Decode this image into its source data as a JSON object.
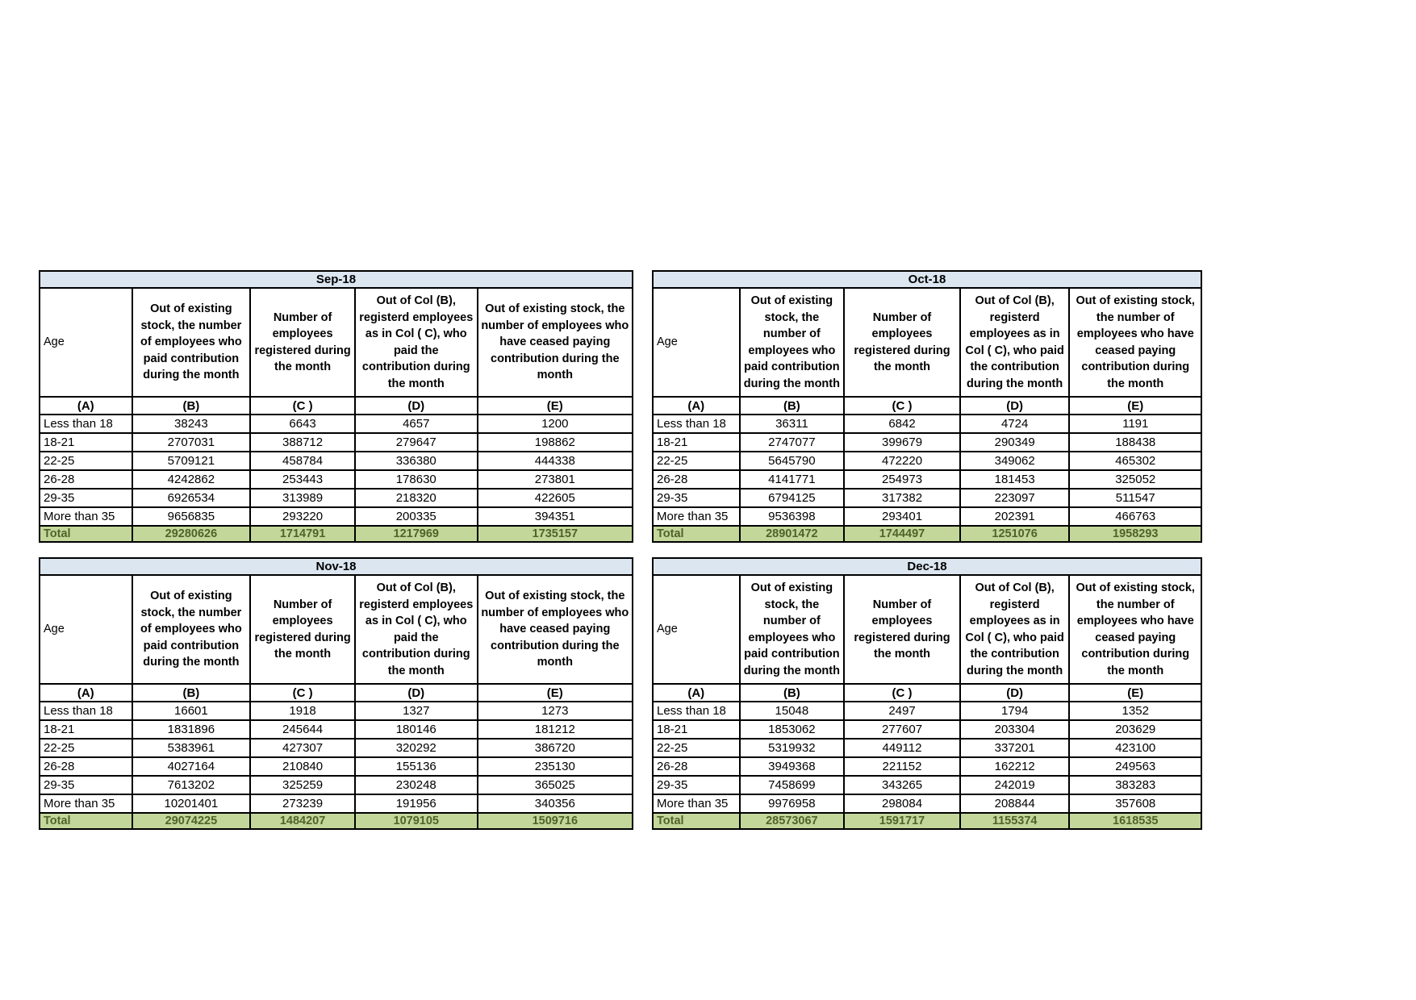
{
  "colors": {
    "title_bg": "#dce6f1",
    "total_bg": "#c4d79b",
    "total_text": "#4f6228",
    "border": "#000000",
    "page_bg": "#ffffff"
  },
  "shared": {
    "age_header": "Age",
    "code_row": [
      "(A)",
      "(B)",
      "(C )",
      "(D)",
      "(E)"
    ],
    "column_headers": [
      "Out of existing stock, the number of employees who paid contribution during the month",
      "Number of employees registered during the month",
      "Out of Col (B), registerd employees as in Col ( C), who paid the contribution during the month",
      "Out of existing stock, the number of  employees  who have ceased paying contribution during the month"
    ]
  },
  "chart_data": {
    "type": "table",
    "note": "Four monthly tables of employee contribution statistics by age group"
  },
  "tables": [
    {
      "title": "Sep-18",
      "rows": [
        [
          "Less than 18",
          "38243",
          "6643",
          "4657",
          "1200"
        ],
        [
          "18-21",
          "2707031",
          "388712",
          "279647",
          "198862"
        ],
        [
          "22-25",
          "5709121",
          "458784",
          "336380",
          "444338"
        ],
        [
          "26-28",
          "4242862",
          "253443",
          "178630",
          "273801"
        ],
        [
          "29-35",
          "6926534",
          "313989",
          "218320",
          "422605"
        ],
        [
          "More than 35",
          "9656835",
          "293220",
          "200335",
          "394351"
        ]
      ],
      "total": [
        "Total",
        "29280626",
        "1714791",
        "1217969",
        "1735157"
      ]
    },
    {
      "title": "Oct-18",
      "rows": [
        [
          "Less than 18",
          "36311",
          "6842",
          "4724",
          "1191"
        ],
        [
          "18-21",
          "2747077",
          "399679",
          "290349",
          "188438"
        ],
        [
          "22-25",
          "5645790",
          "472220",
          "349062",
          "465302"
        ],
        [
          "26-28",
          "4141771",
          "254973",
          "181453",
          "325052"
        ],
        [
          "29-35",
          "6794125",
          "317382",
          "223097",
          "511547"
        ],
        [
          "More than 35",
          "9536398",
          "293401",
          "202391",
          "466763"
        ]
      ],
      "total": [
        "Total",
        "28901472",
        "1744497",
        "1251076",
        "1958293"
      ]
    },
    {
      "title": "Nov-18",
      "rows": [
        [
          "Less than 18",
          "16601",
          "1918",
          "1327",
          "1273"
        ],
        [
          "18-21",
          "1831896",
          "245644",
          "180146",
          "181212"
        ],
        [
          "22-25",
          "5383961",
          "427307",
          "320292",
          "386720"
        ],
        [
          "26-28",
          "4027164",
          "210840",
          "155136",
          "235130"
        ],
        [
          "29-35",
          "7613202",
          "325259",
          "230248",
          "365025"
        ],
        [
          "More than 35",
          "10201401",
          "273239",
          "191956",
          "340356"
        ]
      ],
      "total": [
        "Total",
        "29074225",
        "1484207",
        "1079105",
        "1509716"
      ]
    },
    {
      "title": "Dec-18",
      "rows": [
        [
          "Less than 18",
          "15048",
          "2497",
          "1794",
          "1352"
        ],
        [
          "18-21",
          "1853062",
          "277607",
          "203304",
          "203629"
        ],
        [
          "22-25",
          "5319932",
          "449112",
          "337201",
          "423100"
        ],
        [
          "26-28",
          "3949368",
          "221152",
          "162212",
          "249563"
        ],
        [
          "29-35",
          "7458699",
          "343265",
          "242019",
          "383283"
        ],
        [
          "More than 35",
          "9976958",
          "298084",
          "208844",
          "357608"
        ]
      ],
      "total": [
        "Total",
        "28573067",
        "1591717",
        "1155374",
        "1618535"
      ]
    }
  ]
}
